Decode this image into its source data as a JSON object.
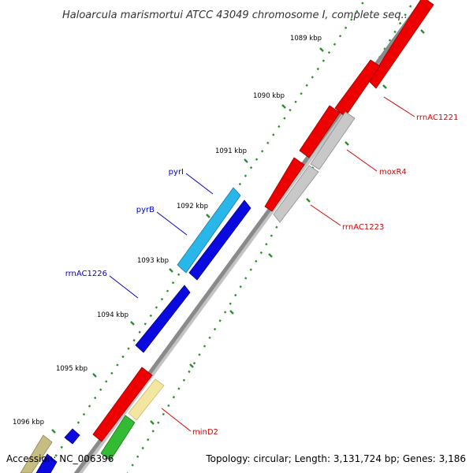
{
  "title": "Haloarcula marismortui ATCC 43049 chromosome I, complete seq...",
  "footer": {
    "accession": "Accession: NC_006396",
    "summary": "Topology: circular; Length: 3,131,724 bp; Genes: 3,186"
  },
  "ticks": [
    "1089 kbp",
    "1090 kbp",
    "1091 kbp",
    "1092 kbp",
    "1093 kbp",
    "1094 kbp",
    "1095 kbp",
    "1096 kbp"
  ],
  "colors": {
    "backbone": "#8a8a8a",
    "forward_label": "#dd0000",
    "reverse_label": "#0000cc",
    "tick_dots": "#2e8b2e",
    "red": "#ee0000",
    "grey": "#c8c8c8",
    "blue": "#0a0ae0",
    "cyan": "#29b6e8",
    "yellow": "#f3e6a0",
    "green": "#33bb33",
    "olive": "#c6bd82"
  },
  "gene_labels": [
    {
      "name": "rrnAC1221",
      "strand": "forward"
    },
    {
      "name": "moxR4",
      "strand": "forward"
    },
    {
      "name": "rrnAC1223",
      "strand": "forward"
    },
    {
      "name": "minD2",
      "strand": "forward"
    },
    {
      "name": "pyrI",
      "strand": "reverse"
    },
    {
      "name": "pyrB",
      "strand": "reverse"
    },
    {
      "name": "rrnAC1226",
      "strand": "reverse"
    }
  ]
}
